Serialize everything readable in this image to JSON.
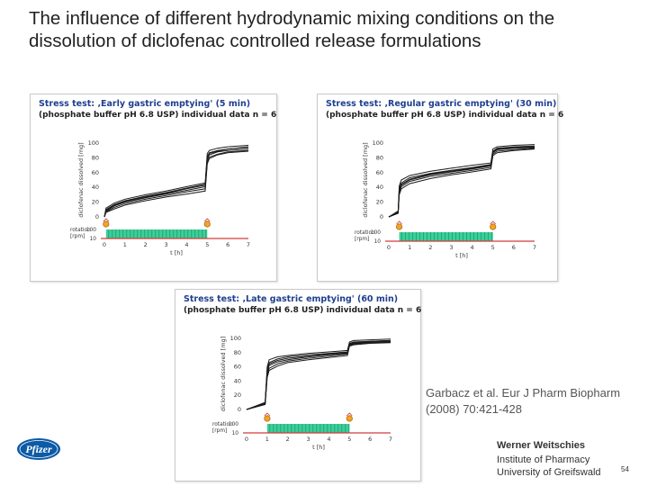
{
  "slide": {
    "title": "The influence of different hydrodynamic mixing conditions on the dissolution of diclofenac controlled release formulations",
    "citation_line1": "Garbacz et al. Eur J Pharm Biopharm",
    "citation_line2": "(2008) 70:421-428",
    "author": "Werner Weitschies",
    "institute_line1": "Institute of Pharmacy",
    "institute_line2": "University of Greifswald",
    "page_number": "54",
    "logo_text": "Pfizer",
    "colors": {
      "panel_title": "#1f3f8f",
      "rotation_bar": "#3bcf9a",
      "curve": "#1a1a1a",
      "logo": "#0d5aa7"
    }
  },
  "chart_data": [
    {
      "type": "line",
      "title": "Stress test: ‚Early gastric emptying' (5 min)",
      "subtitle": "(phosphate buffer pH 6.8 USP) individual data n = 6",
      "ylabel": "diclofenac dissolved [mg]",
      "xlabel": "t [h]",
      "ylim": [
        0,
        100
      ],
      "xlim": [
        0,
        7
      ],
      "yticks": [
        "0",
        "20",
        "40",
        "60",
        "80",
        "100"
      ],
      "xticks": [
        "0",
        "1",
        "2",
        "3",
        "4",
        "5",
        "6",
        "7"
      ],
      "rotation_label": "rotation",
      "rotation_unit": "[rpm]",
      "rotation_ticks": [
        "100",
        "10"
      ],
      "rotation_bar": [
        0.08,
        5.0
      ],
      "stress_events_h": [
        0.08,
        5.0
      ],
      "series": [
        {
          "x": [
            0,
            0.08,
            0.5,
            1,
            2,
            3,
            4,
            4.9,
            5.0,
            5.1,
            5.5,
            6,
            7
          ],
          "y": [
            0,
            12,
            19,
            24,
            30,
            35,
            41,
            46,
            86,
            90,
            93,
            95,
            97
          ]
        },
        {
          "x": [
            0,
            0.08,
            0.5,
            1,
            2,
            3,
            4,
            4.9,
            5.0,
            5.1,
            5.5,
            6,
            7
          ],
          "y": [
            0,
            10,
            17,
            22,
            28,
            33,
            39,
            44,
            82,
            87,
            90,
            92,
            95
          ]
        },
        {
          "x": [
            0,
            0.08,
            0.5,
            1,
            2,
            3,
            4,
            4.9,
            5.0,
            5.1,
            5.5,
            6,
            7
          ],
          "y": [
            0,
            8,
            15,
            20,
            26,
            31,
            36,
            41,
            78,
            84,
            88,
            90,
            92
          ]
        },
        {
          "x": [
            0,
            0.08,
            0.5,
            1,
            2,
            3,
            4,
            4.9,
            5.0,
            5.1,
            5.5,
            6,
            7
          ],
          "y": [
            0,
            7,
            13,
            18,
            24,
            29,
            34,
            38,
            75,
            81,
            85,
            88,
            90
          ]
        },
        {
          "x": [
            0,
            0.08,
            0.5,
            1,
            2,
            3,
            4,
            4.9,
            5.0,
            5.1,
            5.5,
            6,
            7
          ],
          "y": [
            0,
            6,
            11,
            16,
            22,
            27,
            31,
            35,
            72,
            79,
            84,
            87,
            89
          ]
        },
        {
          "x": [
            0,
            0.08,
            0.5,
            1,
            2,
            3,
            4,
            4.9,
            5.0,
            5.1,
            5.5,
            6,
            7
          ],
          "y": [
            0,
            9,
            16,
            21,
            27,
            32,
            38,
            43,
            80,
            86,
            89,
            92,
            94
          ]
        }
      ]
    },
    {
      "type": "line",
      "title": "Stress test: ‚Regular gastric emptying' (30 min)",
      "subtitle": "(phosphate buffer pH 6.8 USP) individual data n = 6",
      "ylabel": "diclofenac dissolved [mg]",
      "xlabel": "t [h]",
      "ylim": [
        0,
        100
      ],
      "xlim": [
        0,
        7
      ],
      "yticks": [
        "0",
        "20",
        "40",
        "60",
        "80",
        "100"
      ],
      "xticks": [
        "0",
        "1",
        "2",
        "3",
        "4",
        "5",
        "6",
        "7"
      ],
      "rotation_label": "rotation",
      "rotation_unit": "[rpm]",
      "rotation_ticks": [
        "100",
        "10"
      ],
      "rotation_bar": [
        0.5,
        5.0
      ],
      "stress_events_h": [
        0.5,
        5.0
      ],
      "series": [
        {
          "x": [
            0,
            0.45,
            0.5,
            0.6,
            1,
            2,
            3,
            4,
            4.9,
            5.0,
            5.2,
            6,
            7
          ],
          "y": [
            0,
            8,
            42,
            50,
            56,
            62,
            66,
            70,
            73,
            92,
            95,
            97,
            98
          ]
        },
        {
          "x": [
            0,
            0.45,
            0.5,
            0.6,
            1,
            2,
            3,
            4,
            4.9,
            5.0,
            5.2,
            6,
            7
          ],
          "y": [
            0,
            7,
            38,
            46,
            53,
            59,
            63,
            67,
            71,
            89,
            93,
            95,
            96
          ]
        },
        {
          "x": [
            0,
            0.45,
            0.5,
            0.6,
            1,
            2,
            3,
            4,
            4.9,
            5.0,
            5.2,
            6,
            7
          ],
          "y": [
            0,
            6,
            35,
            43,
            50,
            57,
            61,
            65,
            69,
            87,
            91,
            93,
            94
          ]
        },
        {
          "x": [
            0,
            0.45,
            0.5,
            0.6,
            1,
            2,
            3,
            4,
            4.9,
            5.0,
            5.2,
            6,
            7
          ],
          "y": [
            0,
            5,
            33,
            41,
            48,
            55,
            59,
            63,
            67,
            85,
            89,
            91,
            93
          ]
        },
        {
          "x": [
            0,
            0.45,
            0.5,
            0.6,
            1,
            2,
            3,
            4,
            4.9,
            5.0,
            5.2,
            6,
            7
          ],
          "y": [
            0,
            5,
            30,
            38,
            45,
            52,
            57,
            61,
            65,
            83,
            87,
            90,
            92
          ]
        },
        {
          "x": [
            0,
            0.45,
            0.5,
            0.6,
            1,
            2,
            3,
            4,
            4.9,
            5.0,
            5.2,
            6,
            7
          ],
          "y": [
            0,
            6,
            36,
            44,
            51,
            58,
            62,
            66,
            70,
            88,
            92,
            94,
            95
          ]
        }
      ]
    },
    {
      "type": "line",
      "title": "Stress test: ‚Late gastric emptying' (60 min)",
      "subtitle": "(phosphate buffer pH 6.8 USP) individual data n = 6",
      "ylabel": "diclofenac dissolved [mg]",
      "xlabel": "t [h]",
      "ylim": [
        0,
        100
      ],
      "xlim": [
        0,
        7
      ],
      "yticks": [
        "0",
        "20",
        "40",
        "60",
        "80",
        "100"
      ],
      "xticks": [
        "0",
        "1",
        "2",
        "3",
        "4",
        "5",
        "6",
        "7"
      ],
      "rotation_label": "rotation",
      "rotation_unit": "[rpm]",
      "rotation_ticks": [
        "100",
        "10"
      ],
      "rotation_bar": [
        1.0,
        5.0
      ],
      "stress_events_h": [
        1.0,
        5.0
      ],
      "series": [
        {
          "x": [
            0,
            0.9,
            1.0,
            1.1,
            1.5,
            2,
            3,
            4,
            4.9,
            5.0,
            5.2,
            6,
            7
          ],
          "y": [
            0,
            10,
            60,
            70,
            74,
            76,
            79,
            81,
            83,
            95,
            97,
            98,
            99
          ]
        },
        {
          "x": [
            0,
            0.9,
            1.0,
            1.1,
            1.5,
            2,
            3,
            4,
            4.9,
            5.0,
            5.2,
            6,
            7
          ],
          "y": [
            0,
            9,
            56,
            66,
            71,
            74,
            77,
            79,
            81,
            93,
            95,
            96,
            97
          ]
        },
        {
          "x": [
            0,
            0.9,
            1.0,
            1.1,
            1.5,
            2,
            3,
            4,
            4.9,
            5.0,
            5.2,
            6,
            7
          ],
          "y": [
            0,
            8,
            52,
            62,
            67,
            70,
            74,
            77,
            79,
            91,
            93,
            95,
            96
          ]
        },
        {
          "x": [
            0,
            0.9,
            1.0,
            1.1,
            1.5,
            2,
            3,
            4,
            4.9,
            5.0,
            5.2,
            6,
            7
          ],
          "y": [
            0,
            8,
            48,
            58,
            64,
            68,
            72,
            75,
            78,
            90,
            92,
            94,
            95
          ]
        },
        {
          "x": [
            0,
            0.9,
            1.0,
            1.1,
            1.5,
            2,
            3,
            4,
            4.9,
            5.0,
            5.2,
            6,
            7
          ],
          "y": [
            0,
            7,
            45,
            55,
            61,
            66,
            70,
            73,
            76,
            89,
            91,
            93,
            94
          ]
        },
        {
          "x": [
            0,
            0.9,
            1.0,
            1.1,
            1.5,
            2,
            3,
            4,
            4.9,
            5.0,
            5.2,
            6,
            7
          ],
          "y": [
            0,
            9,
            54,
            64,
            69,
            72,
            75,
            78,
            80,
            92,
            94,
            96,
            97
          ]
        }
      ]
    }
  ]
}
